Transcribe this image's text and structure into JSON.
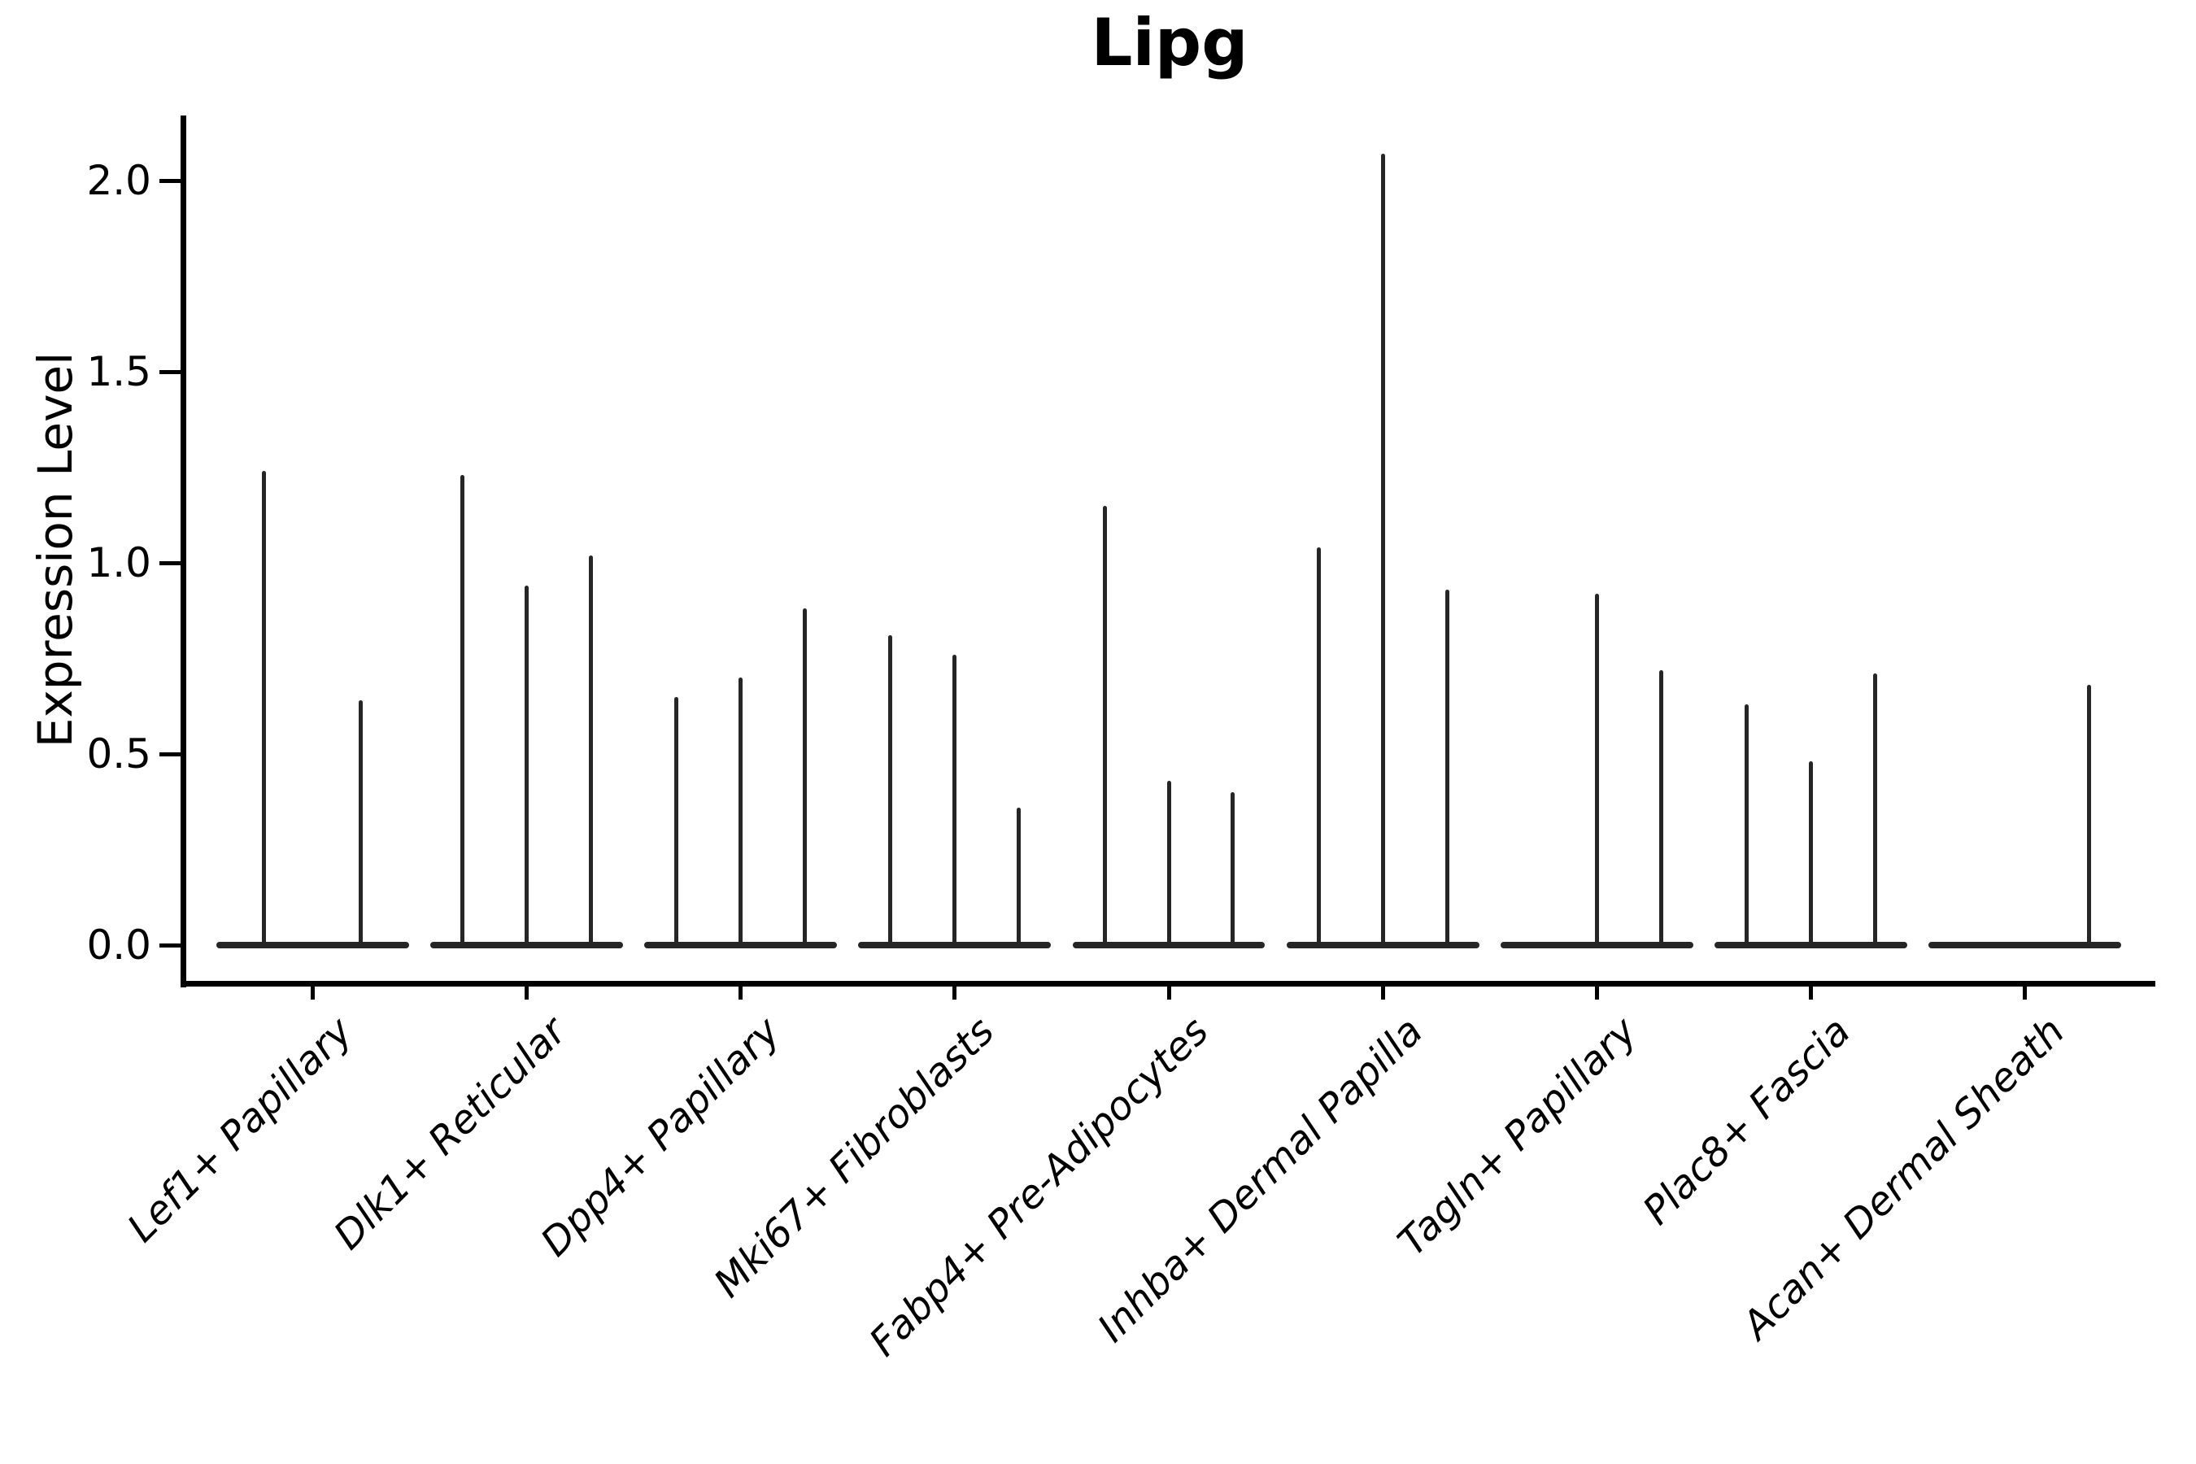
{
  "title": "Lipg",
  "ylabel": "Expression Level",
  "chart_data": {
    "type": "violin",
    "title": "Lipg",
    "ylabel": "Expression Level",
    "ylim": [
      -0.1,
      2.17
    ],
    "grid": false,
    "legend": "none",
    "yticks": [
      "0.0",
      "0.5",
      "1.0",
      "1.5",
      "2.0"
    ],
    "ytick_values": [
      0.0,
      0.5,
      1.0,
      1.5,
      2.0
    ],
    "categories": [
      "Lef1+ Papillary",
      "Dlk1+ Reticular",
      "Dpp4+ Papillary",
      "Mki67+ Fibroblasts",
      "Fabp4+ Pre-Adipocytes",
      "Inhba+ Dermal Papilla",
      "Tagln+ Papillary",
      "Plac8+ Fascia",
      "Acan+ Dermal Sheath"
    ],
    "violins": [
      {
        "category": "Lef1+ Papillary",
        "spike_peaks": [
          1.24,
          0.64
        ]
      },
      {
        "category": "Dlk1+ Reticular",
        "spike_peaks": [
          1.23,
          0.94,
          1.02
        ]
      },
      {
        "category": "Dpp4+ Papillary",
        "spike_peaks": [
          0.65,
          0.7,
          0.88
        ]
      },
      {
        "category": "Mki67+ Fibroblasts",
        "spike_peaks": [
          0.81,
          0.76,
          0.36
        ]
      },
      {
        "category": "Fabp4+ Pre-Adipocytes",
        "spike_peaks": [
          1.15,
          0.43,
          0.4
        ]
      },
      {
        "category": "Inhba+ Dermal Papilla",
        "spike_peaks": [
          1.04,
          2.07,
          0.93
        ]
      },
      {
        "category": "Tagln+ Papillary",
        "spike_peaks": [
          0.0,
          0.92,
          0.72
        ]
      },
      {
        "category": "Plac8+ Fascia",
        "spike_peaks": [
          0.63,
          0.48,
          0.71
        ]
      },
      {
        "category": "Acan+ Dermal Sheath",
        "spike_peaks": [
          0.0,
          0.0,
          0.68
        ]
      }
    ],
    "colors": {
      "violin": "#262626",
      "axis": "#000000",
      "text": "#000000",
      "background": "#ffffff"
    }
  }
}
